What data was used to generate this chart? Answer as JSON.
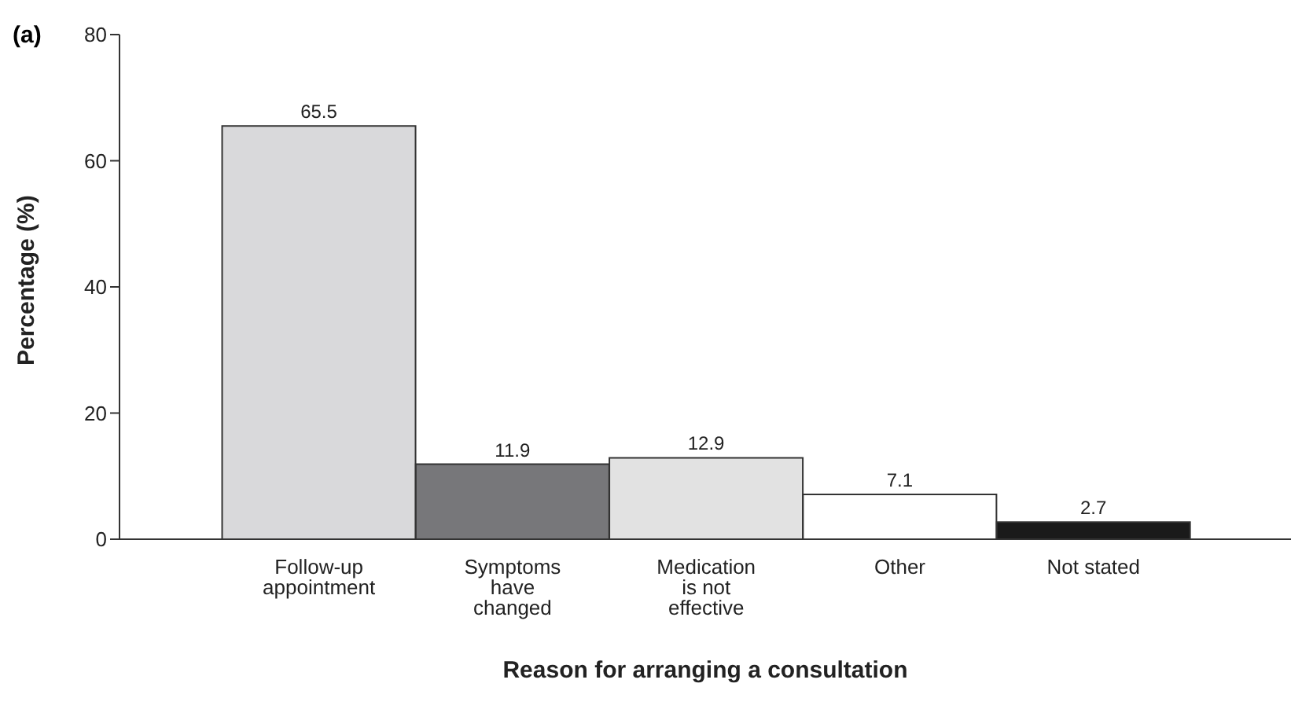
{
  "chart_data": {
    "type": "bar",
    "annotations": [
      "(a)"
    ],
    "xlabel": "Reason for arranging a consultation",
    "ylabel": "Percentage (%)",
    "categories": [
      "Follow-up appointment",
      "Symptoms have changed",
      "Medication is not effective",
      "Other",
      "Not stated"
    ],
    "values": [
      65.5,
      11.9,
      12.9,
      7.1,
      2.7
    ],
    "colors": [
      "#d9d9db",
      "#77777a",
      "#e2e2e2",
      "#ffffff",
      "#1a1a1a"
    ],
    "ylim": [
      0,
      80
    ],
    "yticks": [
      0,
      20,
      40,
      60,
      80
    ],
    "data_labels": true,
    "grid": false,
    "legend": false
  }
}
